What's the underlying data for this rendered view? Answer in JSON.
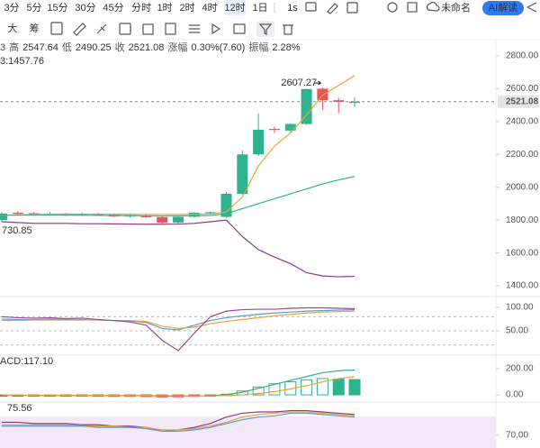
{
  "toolbar": {
    "intervals": [
      "3分",
      "5分",
      "15分",
      "30分",
      "45分",
      "分时",
      "1时",
      "2时",
      "4时",
      "12时",
      "1日"
    ],
    "active": 9,
    "sub": "1s",
    "layout_name": "未命名",
    "ai_button": "AI解读"
  },
  "toolbar2": {
    "items": [
      "大",
      "筹"
    ]
  },
  "info": [
    "3",
    "高",
    "2547.64",
    "低",
    "2490.25",
    "收",
    "2521.08",
    "涨幅",
    "0.30%(7.60)",
    "振幅",
    "2.28%"
  ],
  "chart_data": [
    {
      "type": "candlestick",
      "up_color": "#2db38f",
      "down_color": "#e4545d",
      "open": [
        1800,
        1845,
        1842,
        1832,
        1840,
        1828,
        1838,
        1832,
        1822,
        1828,
        1818,
        1785,
        1820,
        1845,
        1820,
        1960,
        2200,
        2355,
        2345,
        2385,
        2600,
        2530,
        2513.48
      ],
      "high": [
        1850,
        1855,
        1848,
        1850,
        1845,
        1845,
        1845,
        1842,
        1835,
        1838,
        1825,
        1825,
        1850,
        1852,
        1970,
        2225,
        2450,
        2370,
        2390,
        2600,
        2607.27,
        2545,
        2547.64
      ],
      "low": [
        1790,
        1835,
        1826,
        1828,
        1825,
        1825,
        1830,
        1818,
        1815,
        1815,
        1780,
        1778,
        1815,
        1838,
        1815,
        1955,
        2190,
        2330,
        2335,
        2380,
        2470,
        2450,
        2490.25
      ],
      "close": [
        1840,
        1842,
        1830,
        1840,
        1828,
        1838,
        1832,
        1822,
        1828,
        1818,
        1785,
        1820,
        1845,
        1848,
        1960,
        2200,
        2350,
        2350,
        2385,
        2598,
        2530,
        2520,
        2521.08
      ],
      "series": [
        {
          "color": "#f0a22e",
          "values": [
            1828,
            1832,
            1835,
            1836,
            1837,
            1837,
            1837,
            1836,
            1836,
            1835,
            1835,
            1835,
            1836,
            1837,
            1850,
            1940,
            2130,
            2250,
            2330,
            2440,
            2560,
            2620,
            2680
          ]
        },
        {
          "color": "#2db38f",
          "values": [
            1830,
            1830,
            1830,
            1830,
            1830,
            1830,
            1829,
            1828,
            1827,
            1826,
            1825,
            1826,
            1826,
            1828,
            1840,
            1870,
            1900,
            1930,
            1960,
            1990,
            2020,
            2045,
            2065
          ]
        },
        {
          "color": "#8c3a84",
          "values": [
            1790,
            1785,
            1780,
            1780,
            1780,
            1778,
            1778,
            1777,
            1776,
            1775,
            1775,
            1776,
            1780,
            1790,
            1800,
            1700,
            1620,
            1575,
            1535,
            1480,
            1460,
            1455,
            1457.76
          ]
        }
      ],
      "annotations": [
        "3:1457.76",
        "730.85"
      ],
      "ylim": [
        1340,
        2893
      ],
      "yticks": [
        {
          "value": 1400,
          "label": "1400.00"
        },
        {
          "value": 1600,
          "label": "1600.00"
        },
        {
          "value": 1800,
          "label": "1800.00"
        },
        {
          "value": 2000,
          "label": "2000.00"
        },
        {
          "value": 2200,
          "label": "2200.00"
        },
        {
          "value": 2400,
          "label": "2400.00"
        },
        {
          "value": 2600,
          "label": "2600.00"
        },
        {
          "value": 2800,
          "label": "2800.00"
        }
      ]
    },
    {
      "type": "line",
      "series": [
        {
          "color": "#5b9bd5",
          "values": [
            75,
            74,
            74,
            75,
            74,
            74,
            73,
            72,
            71,
            68,
            55,
            52,
            62,
            72,
            78,
            82,
            85,
            88,
            90,
            92,
            93,
            94,
            95
          ]
        },
        {
          "color": "#e8a33a",
          "values": [
            72,
            72,
            73,
            73,
            73,
            73,
            73,
            72,
            72,
            70,
            60,
            55,
            58,
            65,
            70,
            74,
            78,
            82,
            85,
            88,
            90,
            91,
            92
          ]
        },
        {
          "color": "#9a4a9a",
          "values": [
            80,
            78,
            77,
            78,
            76,
            77,
            74,
            72,
            69,
            62,
            30,
            8,
            45,
            80,
            92,
            95,
            96,
            96,
            98,
            99,
            99,
            98,
            97
          ]
        }
      ],
      "reference_lines": [
        80,
        50,
        20
      ],
      "ylim": [
        6,
        121
      ],
      "yticks": [
        {
          "value": 50,
          "label": "50.00"
        },
        {
          "value": 100,
          "label": "100.00"
        }
      ]
    },
    {
      "type": "macd",
      "label": "ACD:117.10",
      "up_color": "#2db38f",
      "down_color": "#e4545d",
      "histogram": [
        -5,
        -6,
        -8,
        -9,
        -10,
        -10,
        -11,
        -12,
        -12,
        -13,
        -16,
        -15,
        -12,
        -8,
        5,
        30,
        60,
        85,
        100,
        115,
        125,
        120,
        117.1
      ],
      "series": [
        {
          "color": "#2db38f",
          "values": [
            -3,
            -3,
            -4,
            -4,
            -5,
            -5,
            -6,
            -6,
            -6,
            -7,
            -9,
            -9,
            -8,
            -6,
            2,
            20,
            50,
            80,
            110,
            140,
            170,
            185,
            190
          ]
        },
        {
          "color": "#f0a22e",
          "values": [
            -2,
            -2,
            -3,
            -3,
            -3,
            -4,
            -4,
            -4,
            -5,
            -5,
            -6,
            -6,
            -7,
            -7,
            -5,
            0,
            10,
            25,
            45,
            70,
            100,
            125,
            140
          ]
        }
      ],
      "ylim": [
        -48,
        297
      ],
      "yticks": [
        {
          "value": 0,
          "label": "0.00"
        },
        {
          "value": 200,
          "label": "200.00"
        }
      ]
    },
    {
      "type": "line",
      "label": "75.56",
      "series": [
        {
          "color": "#8c3a84",
          "values": [
            80,
            80,
            79,
            79,
            79,
            78,
            78,
            77,
            77,
            76,
            73,
            74,
            76,
            79,
            84,
            87,
            88,
            88,
            89,
            89,
            88,
            87,
            86
          ]
        },
        {
          "color": "#e8a33a",
          "values": [
            78,
            78,
            78,
            78,
            78,
            77,
            77,
            77,
            76,
            76,
            74,
            74,
            75,
            77,
            80,
            84,
            86,
            87,
            88,
            88,
            87,
            86,
            85
          ]
        },
        {
          "color": "#5b9bd5",
          "values": [
            77,
            77,
            77,
            77,
            77,
            77,
            76,
            76,
            76,
            75,
            73,
            73,
            74,
            76,
            79,
            82,
            84,
            85,
            87,
            87,
            86,
            85,
            84
          ]
        }
      ],
      "ylim": [
        60,
        95
      ],
      "yticks": [
        {
          "value": 70,
          "label": "70.00"
        }
      ]
    }
  ]
}
